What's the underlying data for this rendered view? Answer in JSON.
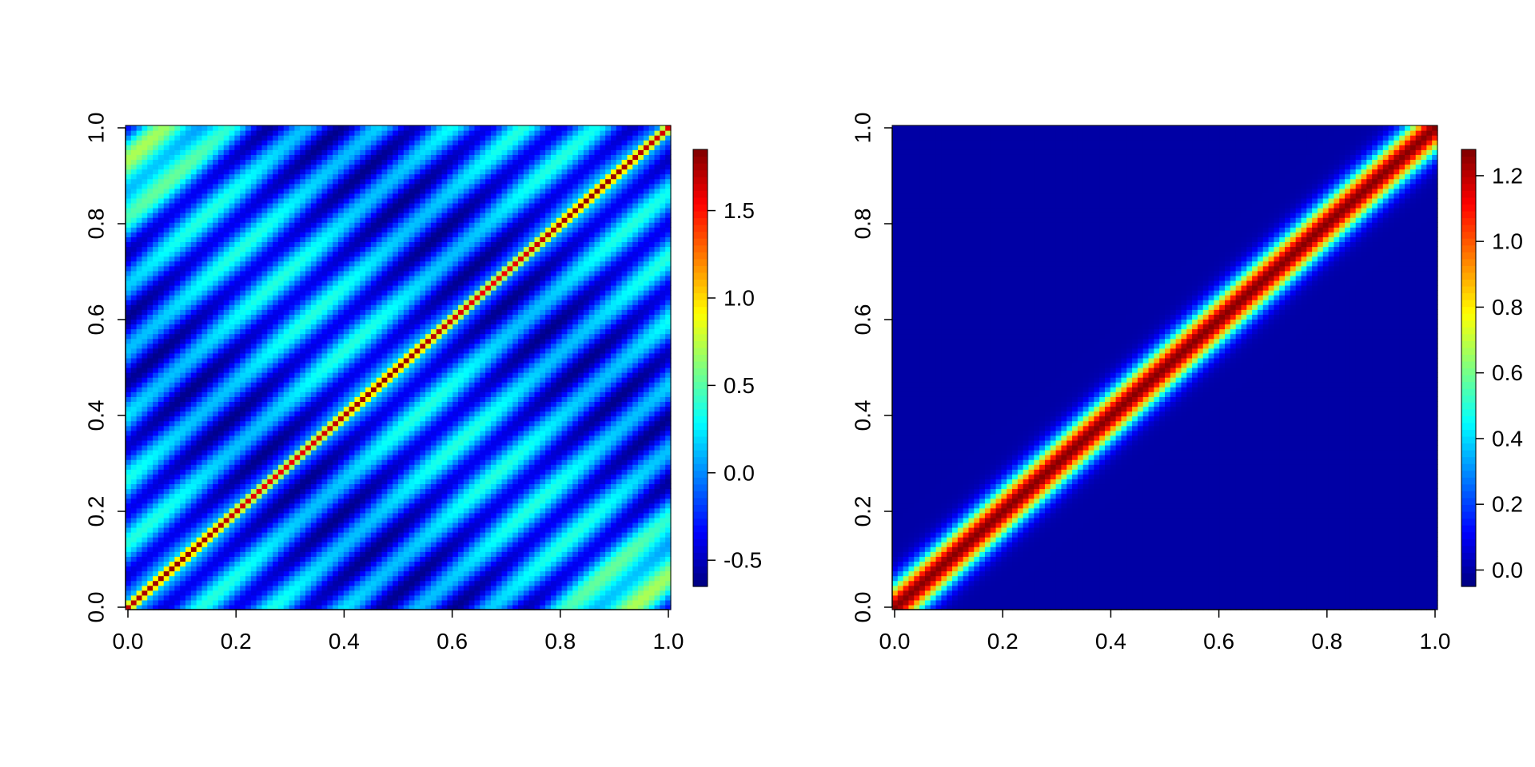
{
  "chart_data": [
    {
      "type": "heatmap",
      "title": "",
      "xlabel": "",
      "ylabel": "",
      "x_range": [
        0,
        1
      ],
      "y_range": [
        0,
        1
      ],
      "x_ticks": [
        {
          "value": 0.0,
          "label": "0.0"
        },
        {
          "value": 0.2,
          "label": "0.2"
        },
        {
          "value": 0.4,
          "label": "0.4"
        },
        {
          "value": 0.6,
          "label": "0.6"
        },
        {
          "value": 0.8,
          "label": "0.8"
        },
        {
          "value": 1.0,
          "label": "1.0"
        }
      ],
      "y_ticks": [
        {
          "value": 0.0,
          "label": "0.0"
        },
        {
          "value": 0.2,
          "label": "0.2"
        },
        {
          "value": 0.4,
          "label": "0.4"
        },
        {
          "value": 0.6,
          "label": "0.6"
        },
        {
          "value": 0.8,
          "label": "0.8"
        },
        {
          "value": 1.0,
          "label": "1.0"
        }
      ],
      "value_range": [
        -0.65,
        1.85
      ],
      "colorbar": {
        "ticks": [
          {
            "value": -0.5,
            "label": "-0.5"
          },
          {
            "value": 0.0,
            "label": "0.0"
          },
          {
            "value": 0.5,
            "label": "0.5"
          },
          {
            "value": 1.0,
            "label": "1.0"
          },
          {
            "value": 1.5,
            "label": "1.5"
          }
        ]
      },
      "grid_cells": 100,
      "description": "diagonal ridge of value ~1.5-1.8 where x = y, with oscillating bands parallel to the diagonal (values roughly -0.6 to 0.6); higher values (~0.7) in the top-left and bottom-right corners"
    },
    {
      "type": "heatmap",
      "title": "",
      "xlabel": "",
      "ylabel": "",
      "x_range": [
        0,
        1
      ],
      "y_range": [
        0,
        1
      ],
      "x_ticks": [
        {
          "value": 0.0,
          "label": "0.0"
        },
        {
          "value": 0.2,
          "label": "0.2"
        },
        {
          "value": 0.4,
          "label": "0.4"
        },
        {
          "value": 0.6,
          "label": "0.6"
        },
        {
          "value": 0.8,
          "label": "0.8"
        },
        {
          "value": 1.0,
          "label": "1.0"
        }
      ],
      "y_ticks": [
        {
          "value": 0.0,
          "label": "0.0"
        },
        {
          "value": 0.2,
          "label": "0.2"
        },
        {
          "value": 0.4,
          "label": "0.4"
        },
        {
          "value": 0.6,
          "label": "0.6"
        },
        {
          "value": 0.8,
          "label": "0.8"
        },
        {
          "value": 1.0,
          "label": "1.0"
        }
      ],
      "value_range": [
        -0.05,
        1.28
      ],
      "colorbar": {
        "ticks": [
          {
            "value": 0.0,
            "label": "0.0"
          },
          {
            "value": 0.2,
            "label": "0.2"
          },
          {
            "value": 0.4,
            "label": "0.4"
          },
          {
            "value": 0.6,
            "label": "0.6"
          },
          {
            "value": 0.8,
            "label": "0.8"
          },
          {
            "value": 1.0,
            "label": "1.0"
          },
          {
            "value": 1.2,
            "label": "1.2"
          }
        ]
      },
      "grid_cells": 100,
      "description": "narrow diagonal ridge with peak ~1.25 where x = y, decaying smoothly to ~0 away from the diagonal"
    }
  ],
  "colormap": [
    "#00007F",
    "#0000FF",
    "#007FFF",
    "#00FFFF",
    "#7FFF7F",
    "#FFFF00",
    "#FF7F00",
    "#FF0000",
    "#7F0000"
  ]
}
